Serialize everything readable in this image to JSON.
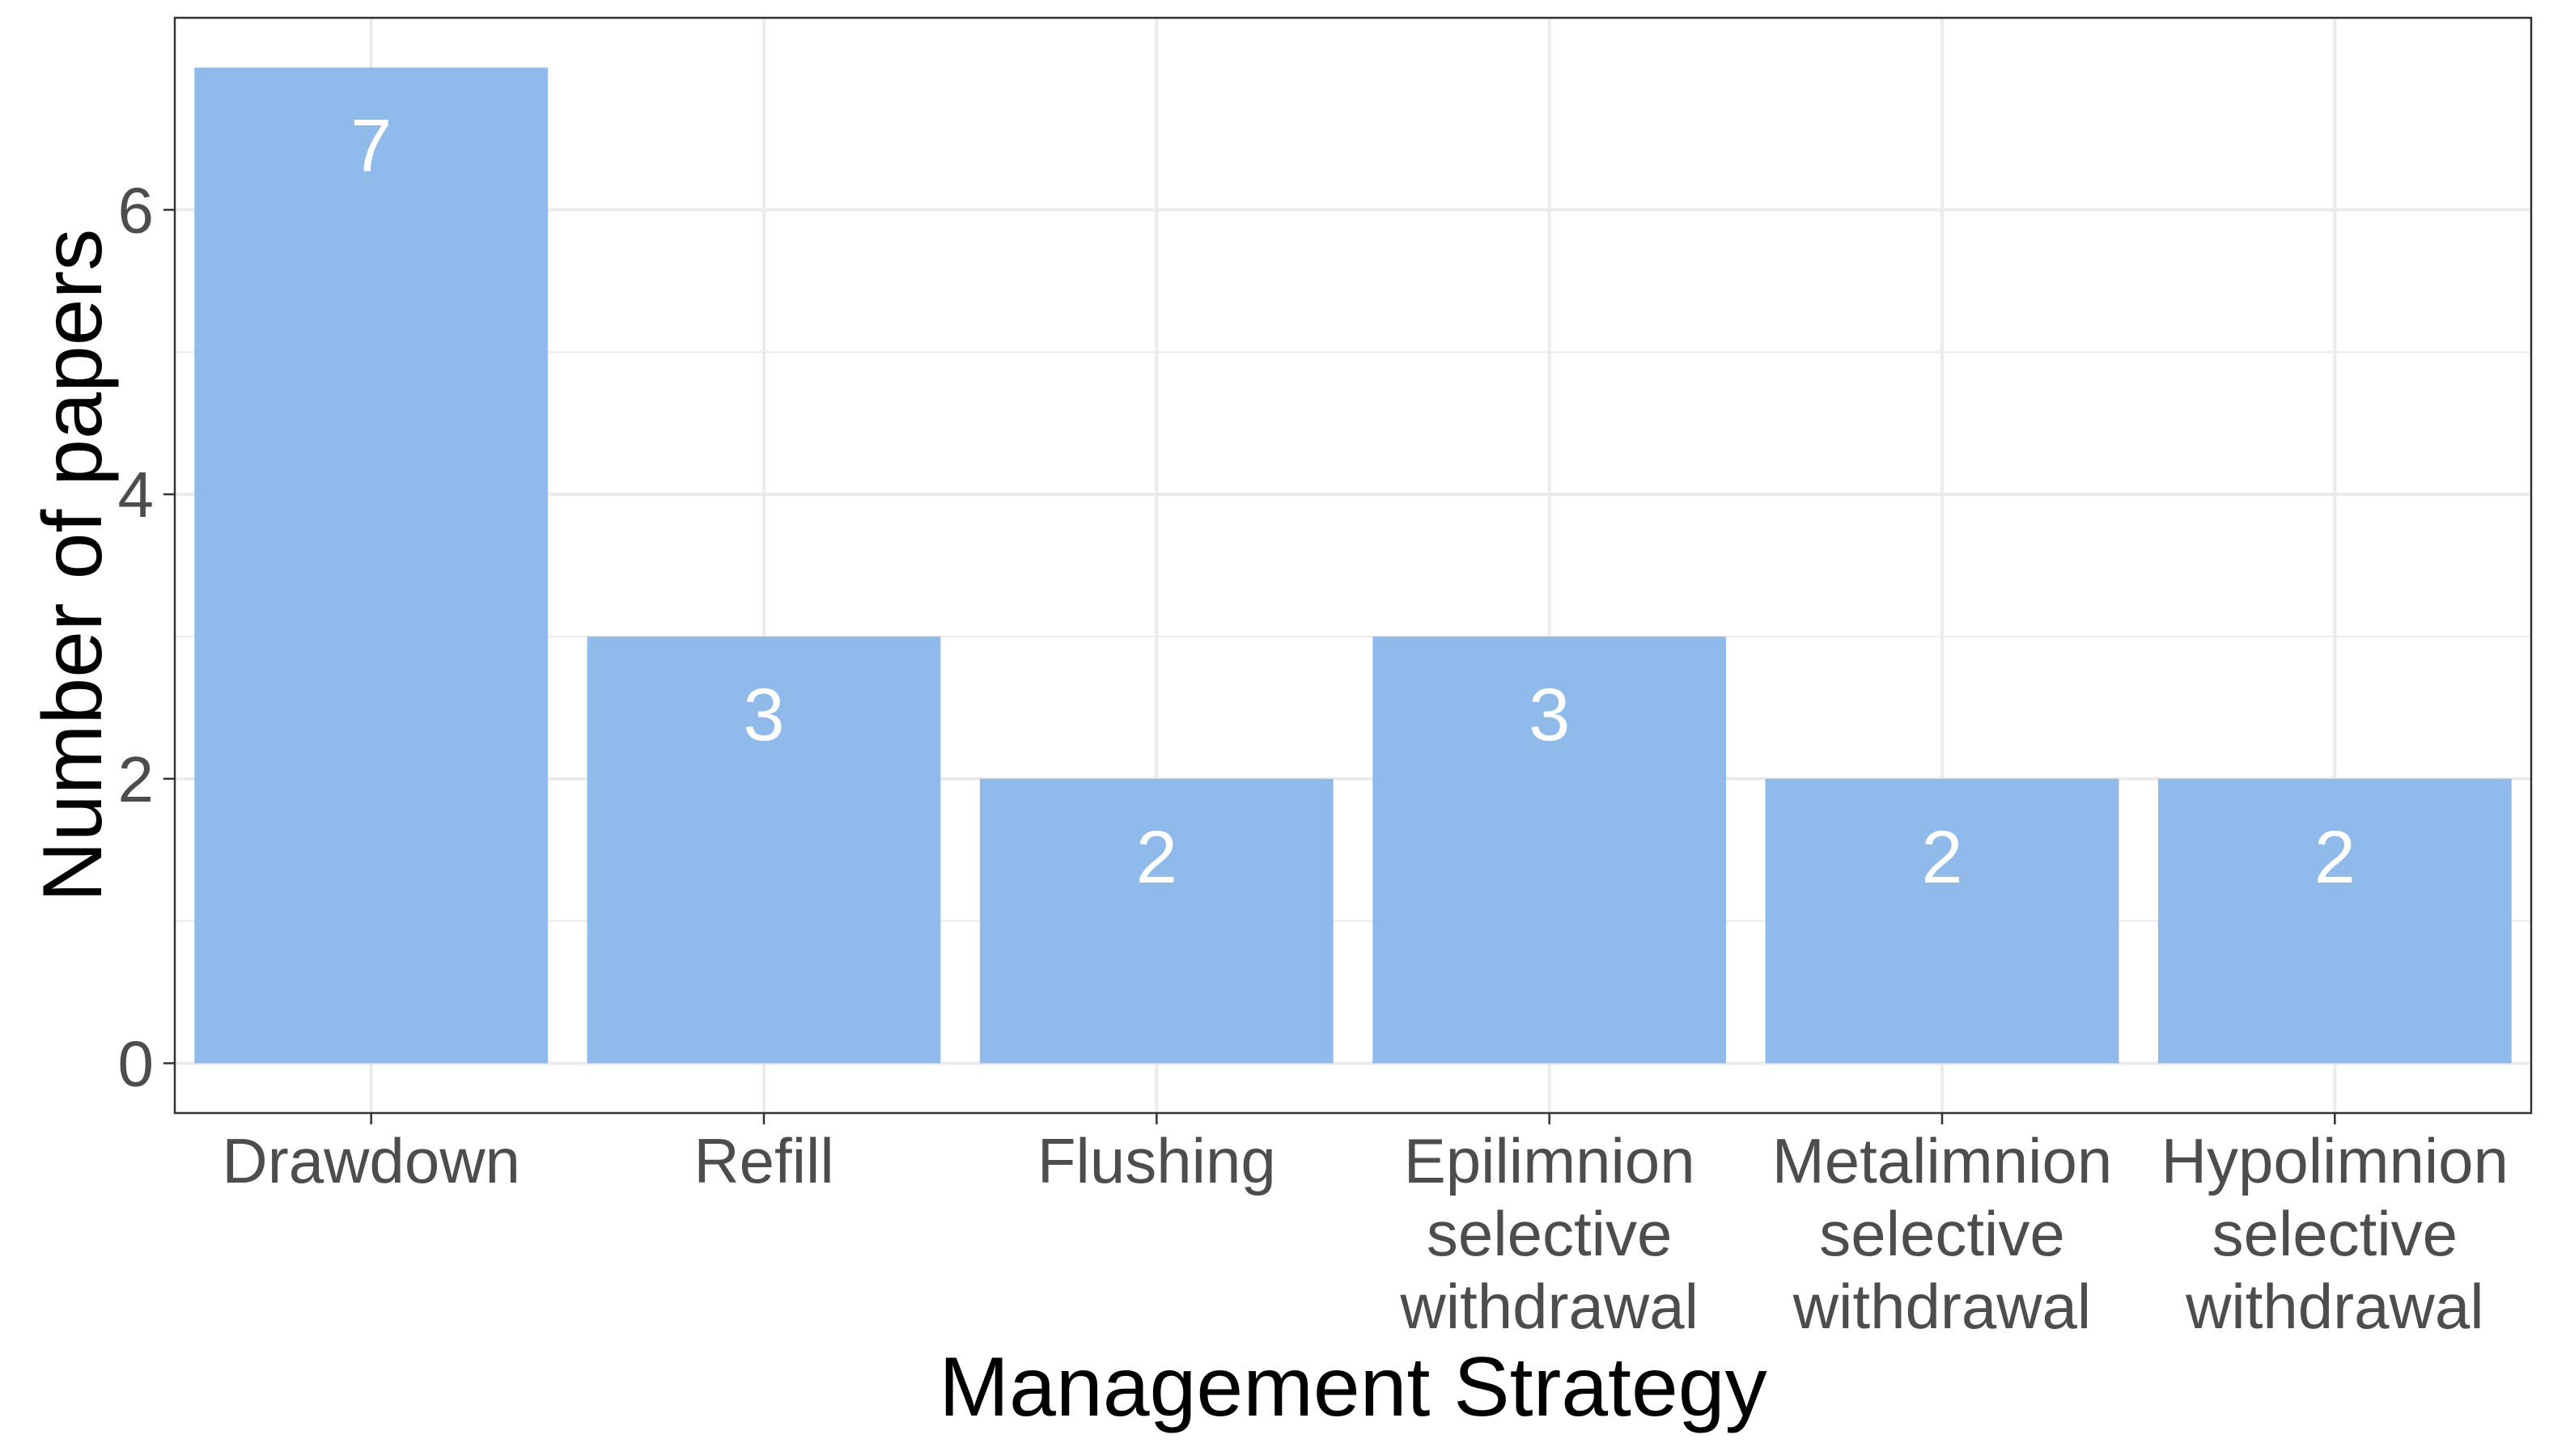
{
  "chart_data": {
    "type": "bar",
    "categories": [
      [
        "Drawdown"
      ],
      [
        "Refill"
      ],
      [
        "Flushing"
      ],
      [
        "Epilimnion",
        "selective",
        "withdrawal"
      ],
      [
        "Metalimnion",
        "selective",
        "withdrawal"
      ],
      [
        "Hypolimnion",
        "selective",
        "withdrawal"
      ]
    ],
    "values": [
      7,
      3,
      2,
      3,
      2,
      2
    ],
    "data_labels": [
      "7",
      "3",
      "2",
      "3",
      "2",
      "2"
    ],
    "xlabel": "Management Strategy",
    "ylabel": "Number of papers",
    "ylim": [
      -0.35,
      7.35
    ],
    "y_ticks": [
      0,
      2,
      4,
      6
    ],
    "y_tick_labels": [
      "0",
      "2",
      "4",
      "6"
    ],
    "grid": true,
    "bar_color": "#8fbaea",
    "grid_color": "#ebebeb",
    "panel_border_color": "#333333"
  }
}
